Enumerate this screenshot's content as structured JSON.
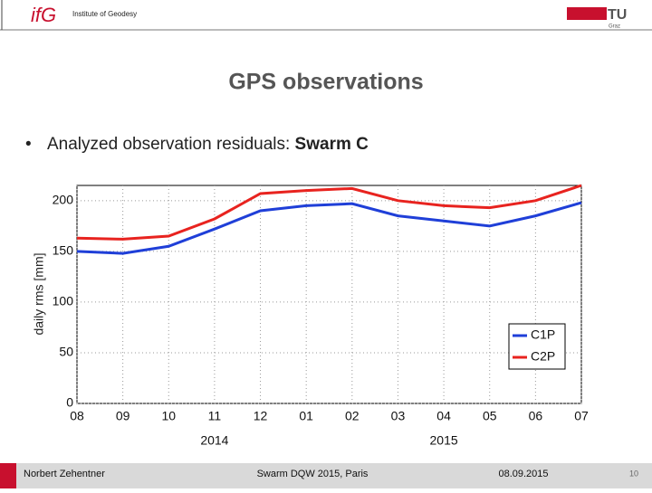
{
  "header": {
    "logo": "ifG",
    "institute": "Institute of Geodesy",
    "tu_logo": "TU",
    "tu_sub": "Graz"
  },
  "slide": {
    "title": "GPS observations",
    "bullet_prefix": "Analyzed observation residuals:",
    "bullet_bold": "Swarm C"
  },
  "chart_data": {
    "type": "line",
    "ylabel": "daily rms [mm]",
    "x": [
      "2014-08",
      "2014-09",
      "2014-10",
      "2014-11",
      "2014-12",
      "2015-01",
      "2015-02",
      "2015-03",
      "2015-04",
      "2015-05",
      "2015-06",
      "2015-07"
    ],
    "series": [
      {
        "name": "C1P",
        "color": "#1f3fd8",
        "values": [
          150,
          148,
          155,
          172,
          190,
          195,
          197,
          185,
          180,
          175,
          185,
          198
        ]
      },
      {
        "name": "C2P",
        "color": "#e8231f",
        "values": [
          163,
          162,
          165,
          182,
          207,
          210,
          212,
          200,
          195,
          193,
          200,
          215
        ]
      }
    ],
    "xlim": [
      "2014-08",
      "2015-07"
    ],
    "ylim": [
      0,
      215
    ],
    "xticks": [
      {
        "value": "2014-08",
        "label": "08"
      },
      {
        "value": "2014-09",
        "label": "09"
      },
      {
        "value": "2014-10",
        "label": "10"
      },
      {
        "value": "2014-11",
        "label": "11"
      },
      {
        "value": "2014-12",
        "label": "12"
      },
      {
        "value": "2015-01",
        "label": "01"
      },
      {
        "value": "2015-02",
        "label": "02"
      },
      {
        "value": "2015-03",
        "label": "03"
      },
      {
        "value": "2015-04",
        "label": "04"
      },
      {
        "value": "2015-05",
        "label": "05"
      },
      {
        "value": "2015-06",
        "label": "06"
      },
      {
        "value": "2015-07",
        "label": "07"
      }
    ],
    "yticks": [
      0,
      50,
      100,
      150,
      200
    ],
    "annotations": [
      {
        "text": "2014",
        "x": "2014-11"
      },
      {
        "text": "2015",
        "x": "2015-04"
      }
    ],
    "grid": true,
    "legend": "lower right"
  },
  "footer": {
    "author": "Norbert Zehentner",
    "event": "Swarm DQW 2015, Paris",
    "date": "08.09.2015",
    "page": "10"
  }
}
